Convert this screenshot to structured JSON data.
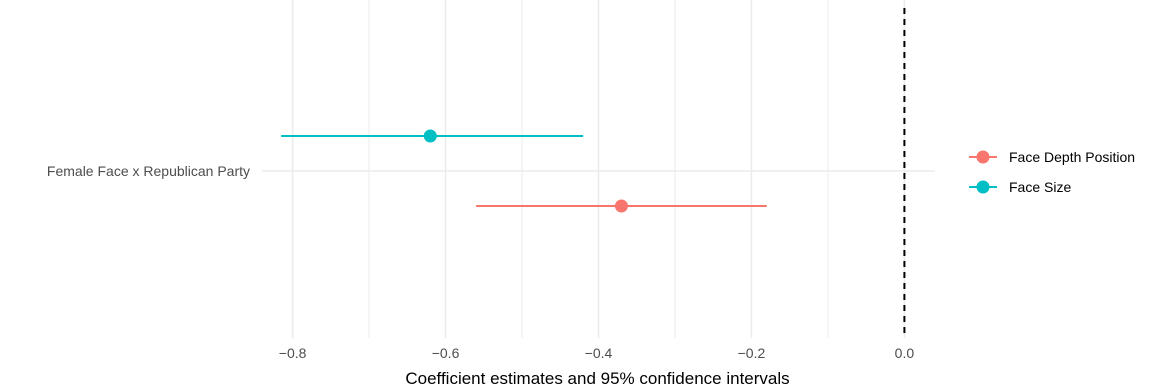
{
  "chart_data": {
    "type": "scatter",
    "title": "",
    "xlabel": "Coefficient estimates and 95% confidence intervals",
    "ylabel": "",
    "xlim": [
      -0.84,
      0.04
    ],
    "x_ticks": [
      -0.8,
      -0.6,
      -0.4,
      -0.2,
      0.0
    ],
    "x_tick_labels": [
      "−0.8",
      "−0.6",
      "−0.4",
      "−0.2",
      "0.0"
    ],
    "categories": [
      "Female Face x Republican Party"
    ],
    "reference_line": 0.0,
    "grid": true,
    "legend_position": "right",
    "series": [
      {
        "name": "Face Depth Position",
        "color": "#F8766D",
        "estimate": -0.37,
        "ci_low": -0.56,
        "ci_high": -0.18,
        "offset": "below"
      },
      {
        "name": "Face Size",
        "color": "#00BFC4",
        "estimate": -0.62,
        "ci_low": -0.815,
        "ci_high": -0.42,
        "offset": "above"
      }
    ]
  }
}
